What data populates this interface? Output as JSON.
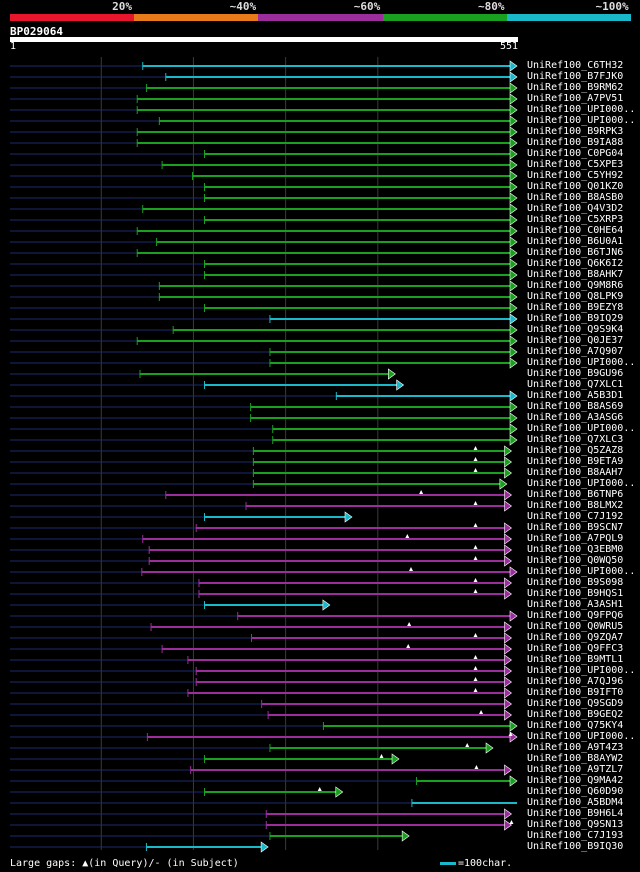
{
  "legend": {
    "labels": [
      "20%",
      "~40%",
      "~60%",
      "~80%",
      "~100%"
    ],
    "colors": [
      "#e8162c",
      "#e87a1c",
      "#9b2d9d",
      "#18a01e",
      "#19b9c9"
    ]
  },
  "query": {
    "id": "BP029064",
    "start": "1",
    "end": "551",
    "length": 551
  },
  "axis": {
    "gridlines": [
      100,
      200,
      300,
      400
    ]
  },
  "hits": [
    {
      "label": "UniRef100_C6TH32",
      "start": 145,
      "end": 551,
      "color": "cyan",
      "shape": "arrow"
    },
    {
      "label": "UniRef100_B7FJK0",
      "start": 170,
      "end": 551,
      "color": "cyan",
      "shape": "arrow"
    },
    {
      "label": "UniRef100_B9RM62",
      "start": 149,
      "end": 551,
      "color": "green",
      "shape": "arrow"
    },
    {
      "label": "UniRef100_A7PV51",
      "start": 139,
      "end": 551,
      "color": "green",
      "shape": "arrow"
    },
    {
      "label": "UniRef100_UPI000..",
      "start": 139,
      "end": 551,
      "color": "green",
      "shape": "arrow"
    },
    {
      "label": "UniRef100_UPI000..",
      "start": 163,
      "end": 551,
      "color": "green",
      "shape": "arrow"
    },
    {
      "label": "UniRef100_B9RPK3",
      "start": 139,
      "end": 551,
      "color": "green",
      "shape": "arrow"
    },
    {
      "label": "UniRef100_B9IA88",
      "start": 139,
      "end": 551,
      "color": "green",
      "shape": "arrow"
    },
    {
      "label": "UniRef100_C0PG04",
      "start": 212,
      "end": 551,
      "color": "green",
      "shape": "arrow"
    },
    {
      "label": "UniRef100_C5XPE3",
      "start": 166,
      "end": 551,
      "color": "green",
      "shape": "arrow"
    },
    {
      "label": "UniRef100_C5YH92",
      "start": 199,
      "end": 551,
      "color": "green",
      "shape": "arrow"
    },
    {
      "label": "UniRef100_Q01KZ0",
      "start": 212,
      "end": 551,
      "color": "green",
      "shape": "arrow"
    },
    {
      "label": "UniRef100_B8ASB0",
      "start": 212,
      "end": 551,
      "color": "green",
      "shape": "arrow"
    },
    {
      "label": "UniRef100_Q4V3D2",
      "start": 145,
      "end": 551,
      "color": "green",
      "shape": "arrow"
    },
    {
      "label": "UniRef100_C5XRP3",
      "start": 212,
      "end": 551,
      "color": "green",
      "shape": "arrow"
    },
    {
      "label": "UniRef100_C0HE64",
      "start": 139,
      "end": 551,
      "color": "green",
      "shape": "arrow"
    },
    {
      "label": "UniRef100_B6U0A1",
      "start": 160,
      "end": 551,
      "color": "green",
      "shape": "arrow"
    },
    {
      "label": "UniRef100_B6TJN6",
      "start": 139,
      "end": 551,
      "color": "green",
      "shape": "arrow"
    },
    {
      "label": "UniRef100_Q6K6I2",
      "start": 212,
      "end": 551,
      "color": "green",
      "shape": "arrow"
    },
    {
      "label": "UniRef100_B8AHK7",
      "start": 212,
      "end": 551,
      "color": "green",
      "shape": "arrow"
    },
    {
      "label": "UniRef100_Q9M8R6",
      "start": 163,
      "end": 551,
      "color": "green",
      "shape": "arrow"
    },
    {
      "label": "UniRef100_Q8LPK9",
      "start": 163,
      "end": 551,
      "color": "green",
      "shape": "arrow"
    },
    {
      "label": "UniRef100_B9EZY8",
      "start": 212,
      "end": 551,
      "color": "green",
      "shape": "arrow"
    },
    {
      "label": "UniRef100_B9IQ29",
      "start": 283,
      "end": 551,
      "color": "cyan",
      "shape": "arrow"
    },
    {
      "label": "UniRef100_Q9S9K4",
      "start": 178,
      "end": 551,
      "color": "green",
      "shape": "arrow"
    },
    {
      "label": "UniRef100_Q0JE37",
      "start": 139,
      "end": 551,
      "color": "green",
      "shape": "arrow"
    },
    {
      "label": "UniRef100_A7Q907",
      "start": 283,
      "end": 551,
      "color": "green",
      "shape": "arrow"
    },
    {
      "label": "UniRef100_UPI000..",
      "start": 283,
      "end": 551,
      "color": "green",
      "shape": "arrow"
    },
    {
      "label": "UniRef100_B9GU96",
      "start": 142,
      "end": 419,
      "color": "green",
      "shape": "arrow"
    },
    {
      "label": "UniRef100_Q7XLC1",
      "start": 212,
      "end": 428,
      "color": "cyan",
      "shape": "arrow"
    },
    {
      "label": "UniRef100_A5B3D1",
      "start": 355,
      "end": 551,
      "color": "cyan",
      "shape": "arrow"
    },
    {
      "label": "UniRef100_B8AS69",
      "start": 262,
      "end": 551,
      "color": "green",
      "shape": "arrow"
    },
    {
      "label": "UniRef100_A3ASG6",
      "start": 262,
      "end": 551,
      "color": "green",
      "shape": "arrow"
    },
    {
      "label": "UniRef100_UPI000..",
      "start": 286,
      "end": 551,
      "color": "green",
      "shape": "arrow"
    },
    {
      "label": "UniRef100_Q7XLC3",
      "start": 286,
      "end": 551,
      "color": "green",
      "shape": "arrow"
    },
    {
      "label": "UniRef100_Q5ZAZ8",
      "start": 265,
      "end": 545,
      "color": "green",
      "shape": "arrow",
      "gap": 506
    },
    {
      "label": "UniRef100_B9ETA9",
      "start": 265,
      "end": 545,
      "color": "green",
      "shape": "arrow",
      "gap": 506
    },
    {
      "label": "UniRef100_B8AAH7",
      "start": 265,
      "end": 545,
      "color": "green",
      "shape": "arrow",
      "gap": 506
    },
    {
      "label": "UniRef100_UPI000..",
      "start": 265,
      "end": 540,
      "color": "green",
      "shape": "arrow"
    },
    {
      "label": "UniRef100_B6TNP6",
      "start": 170,
      "end": 545,
      "color": "purple",
      "shape": "arrow",
      "gap": 447
    },
    {
      "label": "UniRef100_B8LMX2",
      "start": 257,
      "end": 545,
      "color": "purple",
      "shape": "arrow",
      "gap": 506
    },
    {
      "label": "UniRef100_C7J192",
      "start": 212,
      "end": 372,
      "color": "cyan",
      "shape": "arrow"
    },
    {
      "label": "UniRef100_B9SCN7",
      "start": 203,
      "end": 545,
      "color": "purple",
      "shape": "arrow",
      "gap": 506
    },
    {
      "label": "UniRef100_A7PQL9",
      "start": 145,
      "end": 545,
      "color": "purple",
      "shape": "arrow",
      "gap": 432
    },
    {
      "label": "UniRef100_Q3EBM0",
      "start": 152,
      "end": 545,
      "color": "purple",
      "shape": "arrow",
      "gap": 506
    },
    {
      "label": "UniRef100_Q0WQ50",
      "start": 152,
      "end": 545,
      "color": "purple",
      "shape": "arrow",
      "gap": 506
    },
    {
      "label": "UniRef100_UPI000..",
      "start": 144,
      "end": 551,
      "color": "purple",
      "shape": "arrow",
      "gap": 436
    },
    {
      "label": "UniRef100_B9S098",
      "start": 206,
      "end": 545,
      "color": "purple",
      "shape": "arrow",
      "gap": 506
    },
    {
      "label": "UniRef100_B9HQS1",
      "start": 206,
      "end": 545,
      "color": "purple",
      "shape": "arrow",
      "gap": 506
    },
    {
      "label": "UniRef100_A3ASH1",
      "start": 212,
      "end": 348,
      "color": "cyan",
      "shape": "arrow"
    },
    {
      "label": "UniRef100_Q9FPQ6",
      "start": 248,
      "end": 551,
      "color": "purple",
      "shape": "arrow"
    },
    {
      "label": "UniRef100_Q0WRU5",
      "start": 154,
      "end": 545,
      "color": "purple",
      "shape": "arrow",
      "gap": 434
    },
    {
      "label": "UniRef100_Q9ZQA7",
      "start": 263,
      "end": 545,
      "color": "purple",
      "shape": "arrow",
      "gap": 506
    },
    {
      "label": "UniRef100_Q9FFC3",
      "start": 166,
      "end": 545,
      "color": "purple",
      "shape": "arrow",
      "gap": 433
    },
    {
      "label": "UniRef100_B9MTL1",
      "start": 194,
      "end": 545,
      "color": "purple",
      "shape": "arrow",
      "gap": 506
    },
    {
      "label": "UniRef100_UPI000..",
      "start": 203,
      "end": 545,
      "color": "purple",
      "shape": "arrow",
      "gap": 506
    },
    {
      "label": "UniRef100_A7QJ96",
      "start": 203,
      "end": 545,
      "color": "purple",
      "shape": "arrow",
      "gap": 506
    },
    {
      "label": "UniRef100_B9IFT0",
      "start": 194,
      "end": 545,
      "color": "purple",
      "shape": "arrow",
      "gap": 506
    },
    {
      "label": "UniRef100_Q9SGD9",
      "start": 274,
      "end": 545,
      "color": "purple",
      "shape": "arrow"
    },
    {
      "label": "UniRef100_B9GEQ2",
      "start": 281,
      "end": 545,
      "color": "purple",
      "shape": "arrow",
      "gap": 512
    },
    {
      "label": "UniRef100_Q75KY4",
      "start": 341,
      "end": 551,
      "color": "green",
      "shape": "arrow"
    },
    {
      "label": "UniRef100_UPI000..",
      "start": 150,
      "end": 551,
      "color": "purple",
      "shape": "arrow",
      "gap": 544
    },
    {
      "label": "UniRef100_A9T4Z3",
      "start": 283,
      "end": 525,
      "color": "green",
      "shape": "arrow",
      "gap": 497
    },
    {
      "label": "UniRef100_B8AYW2",
      "start": 212,
      "end": 423,
      "color": "green",
      "shape": "arrow",
      "gap": 404
    },
    {
      "label": "UniRef100_A9TZL7",
      "start": 197,
      "end": 545,
      "color": "purple",
      "shape": "arrow",
      "gap": 507
    },
    {
      "label": "UniRef100_Q9MA42",
      "start": 442,
      "end": 551,
      "color": "green",
      "shape": "arrow"
    },
    {
      "label": "UniRef100_Q60D90",
      "start": 212,
      "end": 362,
      "color": "green",
      "shape": "arrow",
      "gap": 337
    },
    {
      "label": "UniRef100_A5BDM4",
      "start": 437,
      "end": 551,
      "color": "cyan",
      "shape": "line"
    },
    {
      "label": "UniRef100_B9H6L4",
      "start": 279,
      "end": 545,
      "color": "purple",
      "shape": "arrow"
    },
    {
      "label": "UniRef100_Q9SN13",
      "start": 279,
      "end": 545,
      "color": "purple",
      "shape": "arrow",
      "gap": 545
    },
    {
      "label": "UniRef100_C7J193",
      "start": 283,
      "end": 434,
      "color": "green",
      "shape": "arrow"
    },
    {
      "label": "UniRef100_B9IQ30",
      "start": 149,
      "end": 281,
      "color": "cyan",
      "shape": "arrow"
    }
  ],
  "footer": {
    "gaps_label": "Large gaps: ▲(in Query)/- (in Subject)",
    "scale_label": "=100char."
  }
}
